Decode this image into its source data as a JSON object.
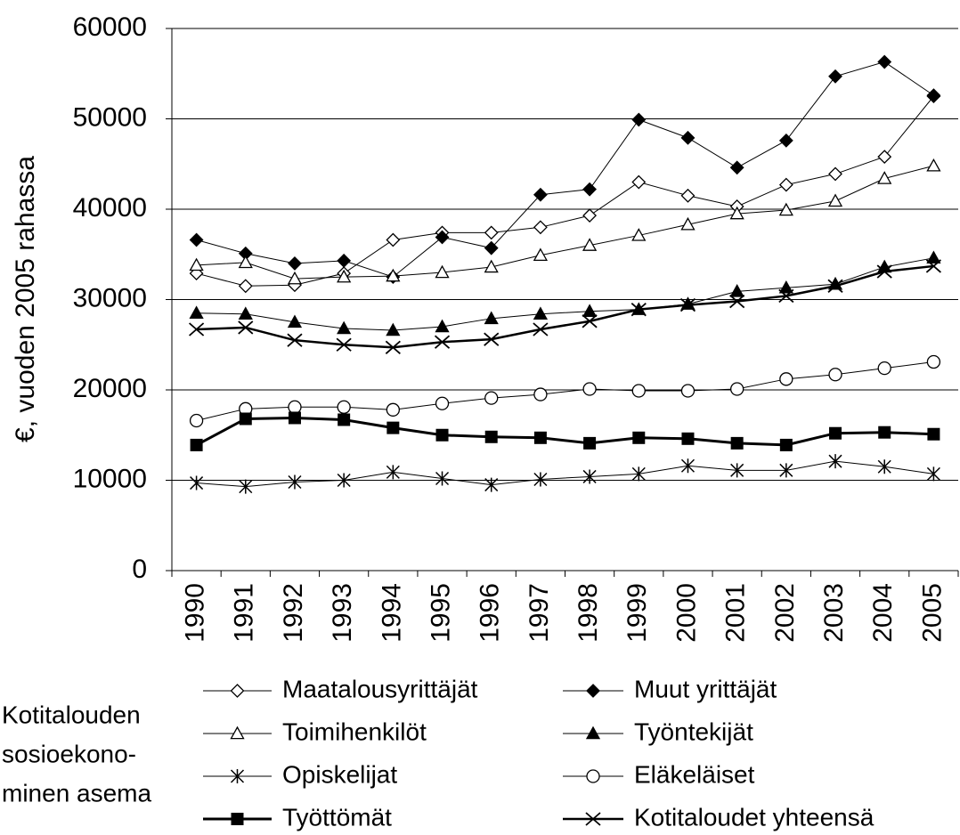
{
  "chart_data": {
    "type": "line",
    "y_label": "€, vuoden 2005 rahassa",
    "legend_title": [
      "Kotitalouden",
      "sosioekono-",
      "minen asema"
    ],
    "categories": [
      "1990",
      "1991",
      "1992",
      "1993",
      "1994",
      "1995",
      "1996",
      "1997",
      "1998",
      "1999",
      "2000",
      "2001",
      "2002",
      "2003",
      "2004",
      "2005"
    ],
    "ylim": [
      0,
      60000
    ],
    "yticks": [
      0,
      10000,
      20000,
      30000,
      40000,
      50000,
      60000
    ],
    "grid": true,
    "series": [
      {
        "name": "Maatalousyrittäjät",
        "color": "#000000",
        "marker": "diamond-open",
        "line_width": 1,
        "values": [
          32900,
          31500,
          31600,
          32900,
          36600,
          37400,
          37400,
          38000,
          39300,
          43000,
          41500,
          40300,
          42700,
          43900,
          45800,
          52500
        ]
      },
      {
        "name": "Muut yrittäjät",
        "color": "#000000",
        "marker": "diamond-filled",
        "line_width": 1,
        "values": [
          36600,
          35100,
          34000,
          34300,
          32500,
          36900,
          35700,
          41600,
          42200,
          49900,
          47900,
          44600,
          47600,
          54700,
          56300,
          52600
        ]
      },
      {
        "name": "Toimihenkilöt",
        "color": "#000000",
        "marker": "triangle-open",
        "line_width": 1,
        "values": [
          33800,
          34100,
          32300,
          32500,
          32600,
          33000,
          33600,
          34900,
          36000,
          37100,
          38300,
          39500,
          39900,
          40900,
          43400,
          44800
        ]
      },
      {
        "name": "Työntekijät",
        "color": "#000000",
        "marker": "triangle-filled",
        "line_width": 1,
        "values": [
          28500,
          28400,
          27500,
          26800,
          26600,
          27000,
          27900,
          28400,
          28700,
          28900,
          29500,
          30900,
          31300,
          31700,
          33600,
          34600
        ]
      },
      {
        "name": "Opiskelijat",
        "color": "#000000",
        "marker": "asterisk",
        "line_width": 1,
        "values": [
          9700,
          9300,
          9800,
          10000,
          10900,
          10200,
          9500,
          10100,
          10400,
          10700,
          11600,
          11100,
          11100,
          12100,
          11500,
          10700
        ]
      },
      {
        "name": "Eläkeläiset",
        "color": "#000000",
        "marker": "circle-open",
        "line_width": 1,
        "values": [
          16600,
          17900,
          18100,
          18100,
          17800,
          18500,
          19100,
          19500,
          20100,
          19900,
          19900,
          20100,
          21200,
          21700,
          22400,
          23100
        ]
      },
      {
        "name": "Työttömät",
        "color": "#000000",
        "marker": "square-filled",
        "line_width": 3,
        "values": [
          13900,
          16800,
          16900,
          16700,
          15800,
          15000,
          14800,
          14700,
          14100,
          14700,
          14600,
          14100,
          13900,
          15200,
          15300,
          15100
        ]
      },
      {
        "name": "Kotitaloudet yhteensä",
        "color": "#000000",
        "marker": "cross",
        "line_width": 2.5,
        "values": [
          26700,
          26900,
          25500,
          25000,
          24700,
          25300,
          25600,
          26700,
          27600,
          28900,
          29400,
          29800,
          30400,
          31500,
          33100,
          33700
        ]
      }
    ]
  }
}
